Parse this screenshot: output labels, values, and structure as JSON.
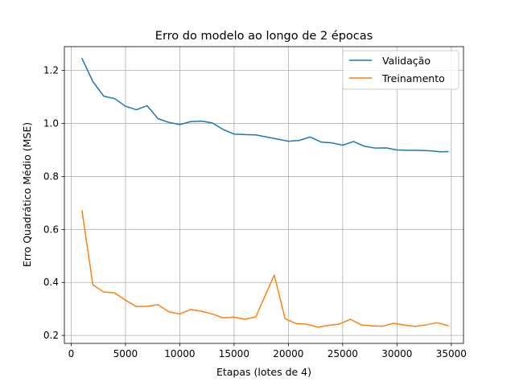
{
  "chart_data": {
    "type": "line",
    "title": "Erro do modelo ao longo de 2 épocas",
    "xlabel": "Etapas (lotes de 4)",
    "ylabel": "Erro Quadrático Médio (MSE)",
    "xlim": [
      -625,
      36125
    ],
    "ylim": [
      0.17,
      1.29
    ],
    "xticks": [
      0,
      5000,
      10000,
      15000,
      20000,
      25000,
      30000,
      35000
    ],
    "yticks": [
      0.2,
      0.4,
      0.6,
      0.8,
      1.0,
      1.2
    ],
    "xtick_labels": [
      "0",
      "5000",
      "10000",
      "15000",
      "20000",
      "25000",
      "30000",
      "35000"
    ],
    "ytick_labels": [
      "0.2",
      "0.4",
      "0.6",
      "0.8",
      "1.0",
      "1.2"
    ],
    "grid": true,
    "legend_position": "top-right",
    "x": [
      1000,
      2000,
      3000,
      4000,
      5000,
      6000,
      7000,
      8000,
      9000,
      10000,
      11000,
      12000,
      13000,
      14000,
      15000,
      16000,
      17000,
      18000,
      19000,
      20000,
      21000,
      22000,
      23000,
      24000,
      25000,
      26000,
      27000,
      28000,
      29000,
      30000,
      31000,
      32000,
      33000,
      34000,
      35000
    ],
    "series": [
      {
        "name": "Validação",
        "color": "#1f77b4",
        "x": [
          1000,
          2000,
          3000,
          4000,
          5000,
          6000,
          7000,
          8000,
          9000,
          10000,
          11000,
          12000,
          13000,
          14000,
          15000,
          16000,
          17000,
          18000,
          19000,
          20000,
          21000,
          22000,
          23000,
          24000,
          25000,
          26000,
          27000,
          28000,
          29000,
          30000,
          31000,
          32000,
          33000,
          34000,
          34700
        ],
        "values": [
          1.245,
          1.158,
          1.103,
          1.094,
          1.065,
          1.052,
          1.067,
          1.018,
          1.004,
          0.996,
          1.007,
          1.009,
          1.002,
          0.977,
          0.96,
          0.958,
          0.957,
          0.949,
          0.941,
          0.933,
          0.936,
          0.949,
          0.93,
          0.927,
          0.918,
          0.932,
          0.914,
          0.907,
          0.908,
          0.9,
          0.899,
          0.899,
          0.897,
          0.893,
          0.894
        ]
      },
      {
        "name": "Treinamento",
        "color": "#ff7f0e",
        "x": [
          1000,
          2000,
          3000,
          4000,
          5000,
          6000,
          7000,
          8000,
          9000,
          10000,
          11000,
          12000,
          13000,
          14000,
          15000,
          16000,
          17000,
          18700,
          19700,
          20700,
          21700,
          22700,
          23700,
          24700,
          25700,
          26700,
          27700,
          28700,
          29700,
          30700,
          31700,
          32700,
          33700,
          34700
        ],
        "values": [
          0.67,
          0.391,
          0.364,
          0.361,
          0.333,
          0.309,
          0.31,
          0.316,
          0.289,
          0.281,
          0.298,
          0.291,
          0.281,
          0.266,
          0.269,
          0.261,
          0.27,
          0.428,
          0.263,
          0.245,
          0.242,
          0.231,
          0.238,
          0.243,
          0.261,
          0.24,
          0.236,
          0.235,
          0.246,
          0.239,
          0.234,
          0.24,
          0.248,
          0.237
        ]
      }
    ]
  }
}
